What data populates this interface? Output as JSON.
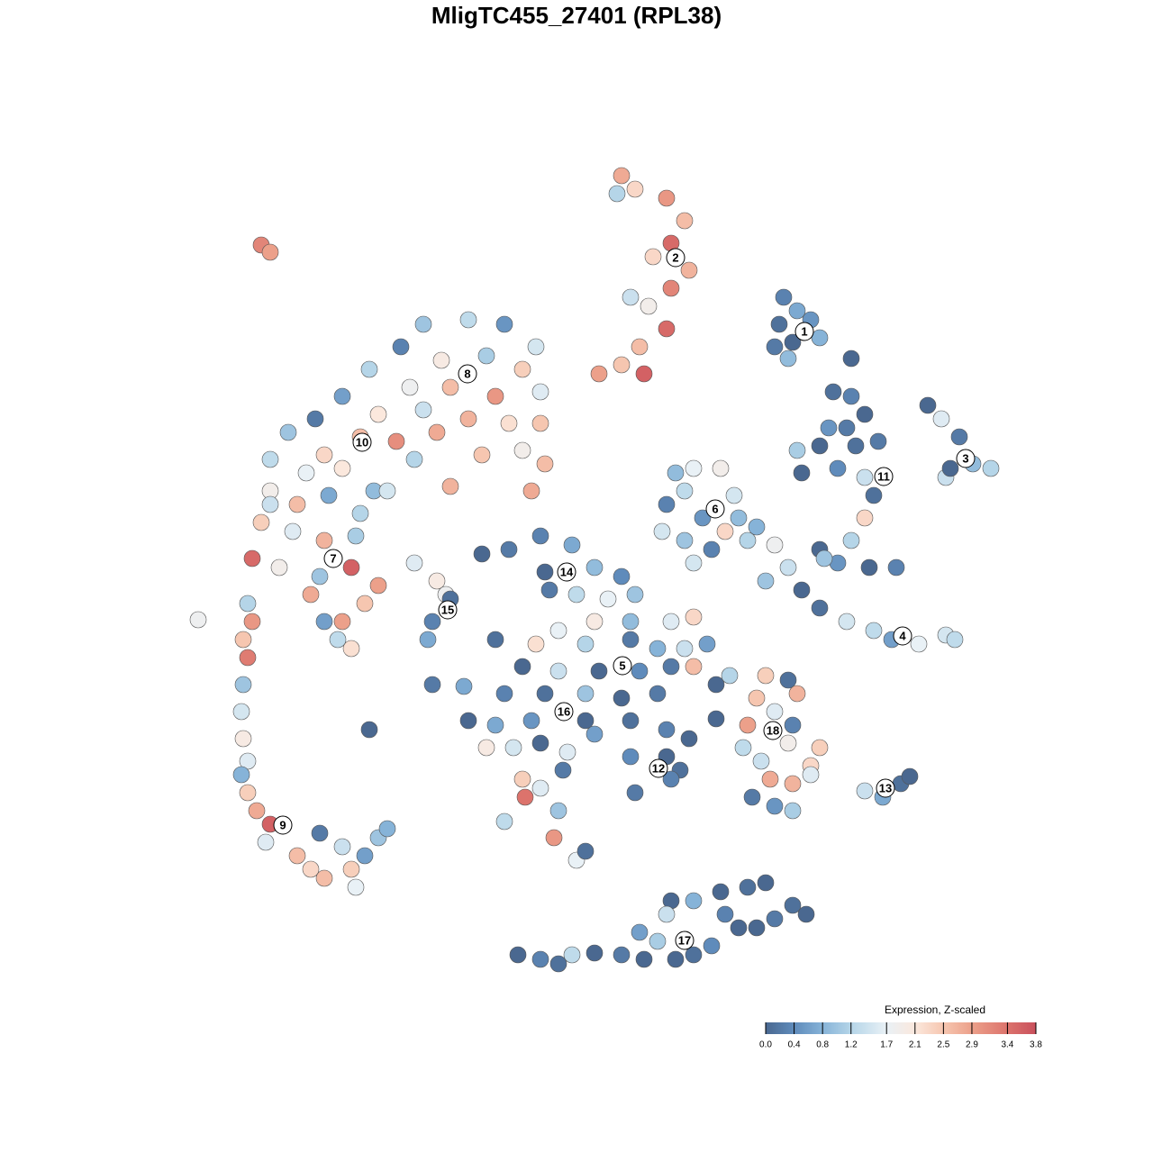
{
  "chart_data": {
    "type": "scatter",
    "title": "MligTC455_27401 (RPL38)",
    "xlim": [
      0,
      128
    ],
    "ylim": [
      128,
      0
    ],
    "x": [
      69,
      70.5,
      74,
      76,
      74.5,
      72.5,
      76.5,
      74.5,
      72,
      74,
      71,
      69,
      71.5,
      66.5,
      70,
      68.5,
      29,
      30,
      87,
      88.5,
      86.5,
      90,
      88,
      91,
      86,
      87.5,
      94.5,
      47,
      52,
      56,
      59.5,
      44.5,
      49,
      54,
      58,
      41,
      45.5,
      50,
      55,
      60,
      38,
      42,
      47,
      52,
      56.5,
      60,
      35,
      40,
      44,
      48.5,
      53.5,
      58,
      60.5,
      32,
      36,
      46,
      50,
      59,
      30,
      34,
      38,
      41.5,
      30,
      33,
      36.5,
      40,
      29,
      32.5,
      36,
      39.5,
      28,
      31,
      35.5,
      39,
      42,
      34.5,
      38,
      40.5,
      36,
      39,
      37.5,
      30,
      43,
      27.5,
      28,
      27,
      27.5,
      27,
      26.8,
      27,
      27.5,
      26.8,
      27.5,
      28.5,
      30,
      29.5,
      33,
      34.5,
      35.5,
      38,
      39,
      40.5,
      42,
      43,
      39.5,
      36,
      22,
      46,
      48.5,
      49.5,
      50,
      48,
      47.5,
      75,
      77,
      80,
      76,
      74,
      81.5,
      82,
      78,
      73.5,
      80.5,
      76,
      79,
      83,
      77,
      84,
      53.5,
      56.5,
      60,
      63.5,
      60.5,
      66,
      69,
      70.5,
      64,
      61,
      67.5,
      66,
      70,
      74.5,
      77,
      62,
      65,
      70,
      73,
      76,
      78.5,
      59.5,
      55,
      58,
      62,
      66.5,
      71,
      74.5,
      77,
      56,
      60.5,
      65,
      69,
      73,
      52,
      55,
      59,
      65,
      70,
      74,
      76.5,
      54,
      57,
      60,
      63,
      66,
      70,
      74,
      75.5,
      70.5,
      74.5,
      48,
      51.5,
      41,
      58,
      58.3,
      60,
      62.5,
      56,
      62,
      61.5,
      64,
      65,
      79.5,
      79.5,
      81,
      85,
      87.5,
      88.5,
      84,
      86,
      83,
      88,
      82.5,
      87.5,
      91,
      84.5,
      90,
      85.5,
      88,
      83.5,
      86,
      88,
      90,
      92.5,
      94.5,
      96,
      92,
      94,
      88.5,
      91,
      95,
      97.5,
      89,
      93,
      96,
      97,
      96,
      94.5,
      91,
      93,
      96.5,
      99.5,
      91.5,
      103,
      104.5,
      106.5,
      108,
      110,
      105,
      105.5,
      86,
      87.5,
      89,
      91,
      94,
      97,
      99,
      102,
      105,
      106,
      85,
      96,
      98,
      100,
      101,
      57.5,
      60,
      62,
      63.5,
      66,
      69,
      71.5,
      71,
      73,
      74.5,
      77,
      80,
      83,
      85,
      88,
      89.5,
      86,
      82,
      79,
      77,
      75,
      80.5,
      84,
      74
    ],
    "y": [
      19.5,
      21,
      22,
      24.5,
      27,
      28.5,
      30,
      32,
      34,
      36.5,
      38.5,
      40.5,
      41.5,
      41.5,
      33,
      21.5,
      27.2,
      28,
      33,
      34.5,
      36,
      35.5,
      38,
      37.5,
      38.5,
      39.8,
      39.8,
      36,
      35.5,
      36,
      38.5,
      38.5,
      40,
      39.5,
      41,
      41,
      43,
      43,
      44,
      43.5,
      44,
      46,
      45.5,
      46.5,
      47,
      47,
      46.5,
      48.5,
      49,
      48,
      50.5,
      50,
      51.5,
      48,
      50.5,
      51,
      54,
      54.5,
      51,
      52.5,
      52,
      54.5,
      54.5,
      56,
      55,
      57,
      58,
      59,
      60,
      59.5,
      62,
      63,
      64,
      63,
      65,
      66,
      69,
      67,
      69,
      72,
      71,
      56,
      54.5,
      67,
      69,
      71,
      73,
      76,
      79,
      82,
      84.5,
      86,
      88,
      90,
      91.5,
      93.5,
      95,
      96.5,
      92.5,
      94,
      96.5,
      95,
      93,
      92,
      98.5,
      97.5,
      68.8,
      62.5,
      64.5,
      66,
      66.5,
      69,
      71,
      52.5,
      52,
      52,
      54.5,
      56,
      55,
      57.5,
      57.5,
      59,
      59,
      60,
      61,
      60,
      62.5,
      58.5,
      61.5,
      61,
      59.5,
      60.5,
      63.5,
      63,
      64,
      66,
      66,
      65.5,
      66.5,
      69,
      69,
      69,
      68.5,
      70,
      71.5,
      71,
      72,
      72,
      71.5,
      71.5,
      71,
      74,
      74.5,
      74.5,
      74.5,
      74,
      74,
      77,
      77,
      77,
      77.5,
      77,
      80,
      80.5,
      80,
      80,
      80,
      81,
      82,
      83,
      83,
      82.5,
      83.5,
      81.5,
      84,
      84,
      85.5,
      88,
      86.5,
      76,
      76.2,
      81,
      86.5,
      88.5,
      87.5,
      85.5,
      91.2,
      90,
      93,
      95.5,
      94.5,
      76,
      79.8,
      75,
      75,
      75.5,
      77,
      77.5,
      79,
      80.5,
      80.5,
      83,
      82.5,
      83,
      84.5,
      85,
      86.5,
      87,
      88.5,
      89.5,
      90,
      86,
      43.5,
      44,
      46,
      47.5,
      47.5,
      50,
      49.5,
      49.5,
      49,
      52.5,
      52,
      53,
      55,
      57.5,
      60,
      61,
      62.5,
      63,
      63,
      62,
      45,
      46.5,
      48.5,
      51.5,
      52,
      53,
      52,
      60.5,
      63,
      65.5,
      67.5,
      69,
      70,
      71,
      71.5,
      70.5,
      71,
      64.5,
      87.8,
      88.5,
      87,
      86.2,
      106,
      106.5,
      107,
      106,
      105.8,
      106,
      106.5,
      103.5,
      104.5,
      100,
      100,
      99,
      98.5,
      98,
      100.5,
      101.5,
      102,
      103,
      105,
      106,
      106.5,
      101.5,
      103,
      101.5
    ],
    "values": [
      2.8,
      2.3,
      3.0,
      2.6,
      3.5,
      2.3,
      2.7,
      3.2,
      1.9,
      3.5,
      2.6,
      2.5,
      3.6,
      2.9,
      1.4,
      1.2,
      3.2,
      2.9,
      0.3,
      0.7,
      0.1,
      0.5,
      0,
      0.8,
      0.2,
      0.9,
      0,
      1.0,
      1.3,
      0.5,
      1.5,
      0.3,
      2.0,
      1.1,
      2.4,
      1.2,
      1.8,
      2.6,
      3.0,
      1.6,
      0.6,
      2.1,
      1.4,
      2.7,
      2.2,
      2.5,
      0.2,
      2.6,
      3.1,
      2.8,
      2.5,
      1.9,
      2.6,
      1.0,
      2.3,
      1.2,
      2.7,
      2.8,
      1.3,
      1.7,
      2.1,
      0.9,
      1.9,
      2.6,
      0.7,
      1.2,
      2.4,
      1.6,
      2.7,
      1.1,
      3.5,
      1.9,
      1.0,
      3.6,
      2.9,
      2.8,
      2.9,
      2.5,
      0.6,
      2.2,
      1.3,
      1.4,
      1.5,
      1.2,
      3.0,
      2.5,
      3.3,
      1.0,
      1.5,
      2.0,
      1.6,
      0.8,
      2.4,
      2.8,
      3.6,
      1.6,
      2.6,
      2.3,
      0.2,
      1.4,
      2.4,
      0.6,
      1.0,
      0.8,
      1.7,
      2.6,
      1.8,
      1.6,
      2.0,
      1.8,
      0.1,
      0.3,
      0.7,
      0.9,
      1.7,
      1.9,
      1.3,
      0.3,
      1.5,
      0.9,
      0.5,
      1.5,
      2.3,
      1.0,
      0.3,
      1.2,
      1.5,
      0.8,
      0,
      0.2,
      0.3,
      0.7,
      0,
      0.9,
      0.4,
      1.0,
      1.3,
      0.2,
      1.7,
      2.0,
      0.9,
      1.6,
      2.3,
      1.7,
      1.2,
      0.2,
      0.8,
      1.4,
      0.6,
      2.2,
      0.1,
      0,
      1.4,
      0,
      0.4,
      0.2,
      2.6,
      0.3,
      0.1,
      1.0,
      0,
      0.2,
      0,
      0.7,
      0.5,
      0,
      0.1,
      0.3,
      0,
      2.0,
      1.5,
      0,
      1.6,
      0.6,
      0.4,
      0,
      0.1,
      0.2,
      0.3,
      0.2,
      0.7,
      0,
      2.4,
      3.4,
      1.6,
      0.2,
      1.3,
      1.0,
      3.0,
      1.7,
      0.1,
      0,
      0,
      1.2,
      2.4,
      0.1,
      2.7,
      2.5,
      1.6,
      2.9,
      0.3,
      1.3,
      1.9,
      2.4,
      1.4,
      2.3,
      2.8,
      2.7,
      0.2,
      0.5,
      1.1,
      1.6,
      0.1,
      0.3,
      0,
      0.5,
      0.2,
      1.1,
      0,
      0.1,
      0.2,
      0,
      0.4,
      1.4,
      0.1,
      2.3,
      1.2,
      0,
      0.5,
      0,
      0.3,
      1.0,
      0,
      1.6,
      0.2,
      0.9,
      1.2,
      1.4,
      0,
      1.8,
      1.4,
      0,
      0.1,
      1.5,
      1.3,
      0.6,
      1.7,
      1.5,
      1.3,
      1.0,
      1.4,
      0.7,
      0.1,
      0,
      0,
      0.3,
      0.1,
      1.3,
      0,
      0.2,
      0,
      0.6,
      1.1,
      0,
      0.8,
      0,
      0.1,
      0,
      0.1,
      0,
      0.2,
      0,
      0.4,
      0.1,
      0,
      0.3,
      0,
      1.4
    ],
    "cluster_labels": {
      "labels": [
        "1",
        "2",
        "3",
        "4",
        "5",
        "6",
        "7",
        "8",
        "9",
        "10",
        "11",
        "12",
        "13",
        "14",
        "15",
        "16",
        "17",
        "18"
      ],
      "x": [
        89.3,
        75,
        107.2,
        100.2,
        69.1,
        79.4,
        37,
        51.9,
        31.4,
        40.2,
        98.1,
        73.1,
        98.3,
        62.9,
        49.7,
        62.6,
        76,
        85.8
      ],
      "y": [
        36.8,
        28.6,
        50.9,
        70.6,
        73.9,
        56.5,
        62,
        41.5,
        91.6,
        49.1,
        52.9,
        85.3,
        87.5,
        63.5,
        67.7,
        79,
        104.4,
        81.1
      ]
    },
    "colorbar": {
      "title": "Expression, Z-scaled",
      "lim": [
        0,
        3.8
      ],
      "ticks": [
        {
          "value": 0,
          "label": "0.0"
        },
        0.4,
        0.8,
        1.2,
        1.7,
        2.1,
        2.5,
        2.9,
        3.4,
        3.8
      ],
      "colors": [
        "#4a6890",
        "#5f8bbb",
        "#86b3d8",
        "#b5d5e8",
        "#e9f1f6",
        "#fbe8dd",
        "#f6c6b0",
        "#eca08a",
        "#dc736c",
        "#c9505c"
      ]
    }
  }
}
